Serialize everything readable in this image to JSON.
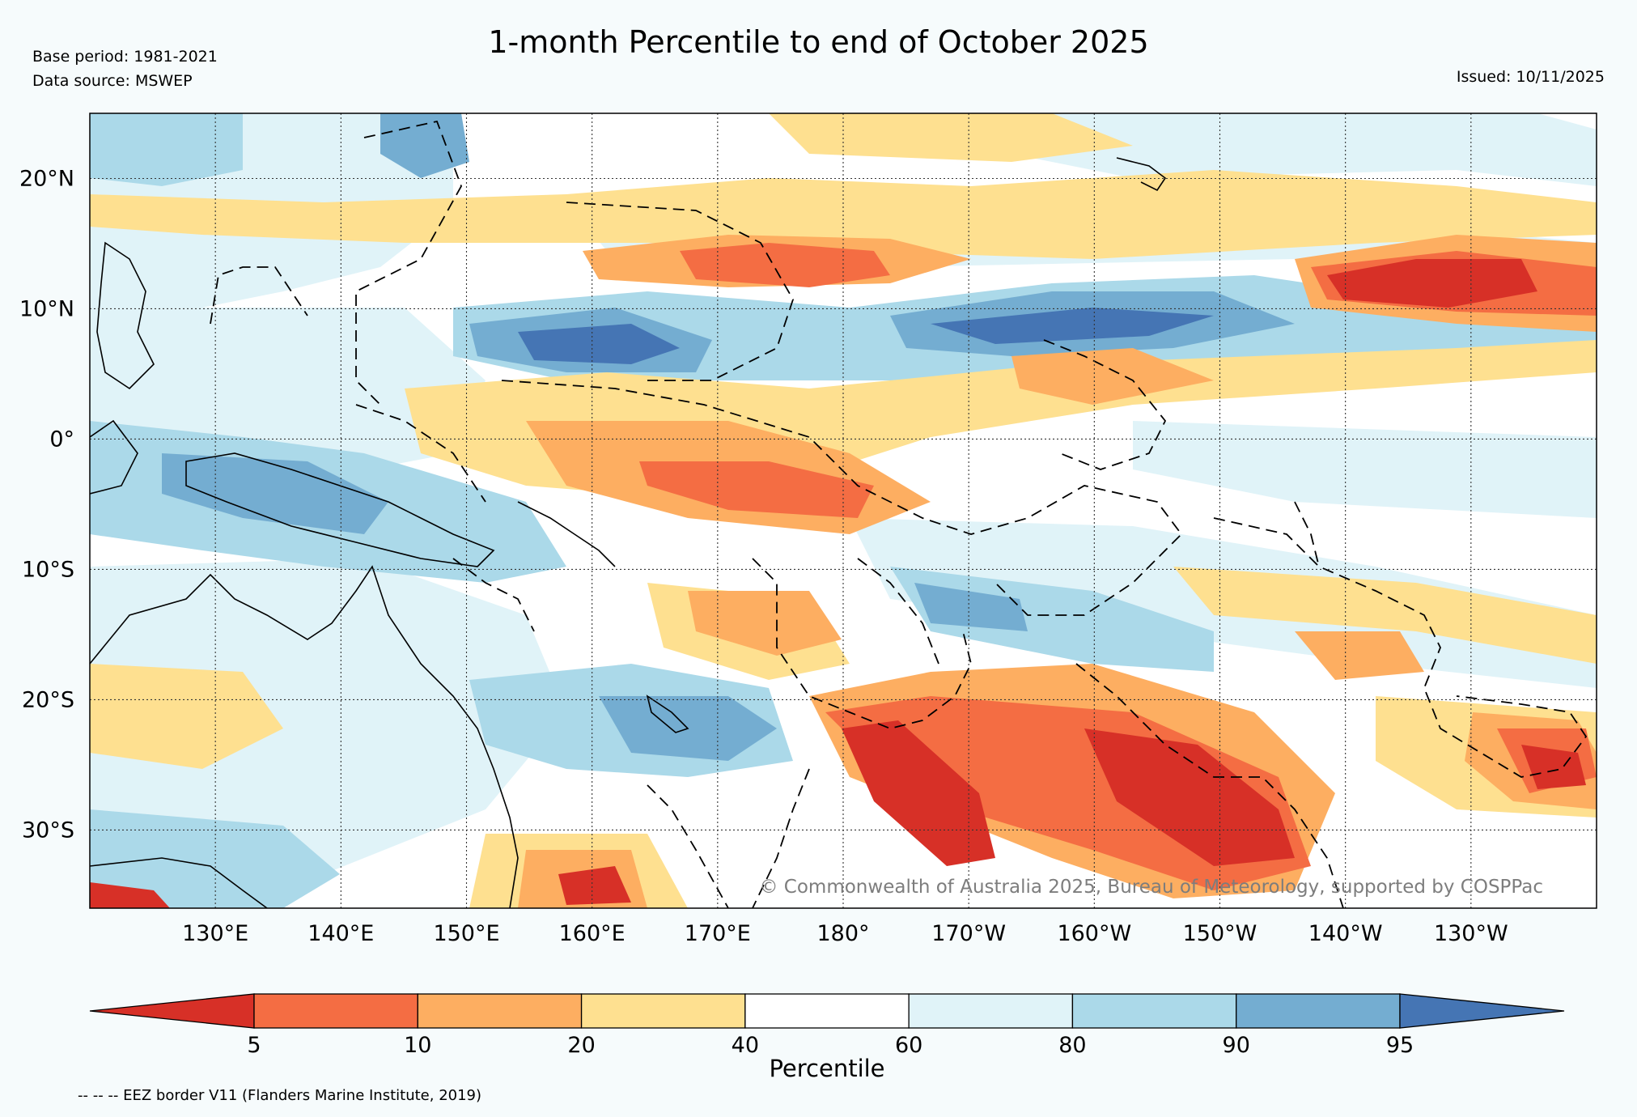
{
  "header": {
    "base_period": "Base period: 1981-2021",
    "data_source": "Data source: MSWEP",
    "title": "1-month Percentile to end of October 2025",
    "issued": "Issued: 10/11/2025"
  },
  "map": {
    "lon_range": [
      120,
      240
    ],
    "lat_range": [
      -36,
      25
    ],
    "lat_ticks": [
      {
        "value": 20,
        "label": "20°N"
      },
      {
        "value": 10,
        "label": "10°N"
      },
      {
        "value": 0,
        "label": "0°"
      },
      {
        "value": -10,
        "label": "10°S"
      },
      {
        "value": -20,
        "label": "20°S"
      },
      {
        "value": -30,
        "label": "30°S"
      }
    ],
    "lon_ticks": [
      {
        "value": 130,
        "label": "130°E"
      },
      {
        "value": 140,
        "label": "140°E"
      },
      {
        "value": 150,
        "label": "150°E"
      },
      {
        "value": 160,
        "label": "160°E"
      },
      {
        "value": 170,
        "label": "170°E"
      },
      {
        "value": 180,
        "label": "180°"
      },
      {
        "value": 190,
        "label": "170°W"
      },
      {
        "value": 200,
        "label": "160°W"
      },
      {
        "value": 210,
        "label": "150°W"
      },
      {
        "value": 220,
        "label": "140°W"
      },
      {
        "value": 230,
        "label": "130°W"
      }
    ],
    "copyright": "© Commonwealth of Australia 2025, Bureau of Meteorology, supported by COSPPac"
  },
  "colorbar": {
    "colors": [
      "#d73027",
      "#f46d43",
      "#fdae61",
      "#fee090",
      "#ffffff",
      "#e0f3f8",
      "#abd9e9",
      "#74add1",
      "#4575b4"
    ],
    "bounds": [
      "5",
      "10",
      "20",
      "40",
      "60",
      "80",
      "90",
      "95"
    ],
    "label": "Percentile"
  },
  "footnote": "-- -- -- EEZ border V11 (Flanders Marine Institute, 2019)"
}
